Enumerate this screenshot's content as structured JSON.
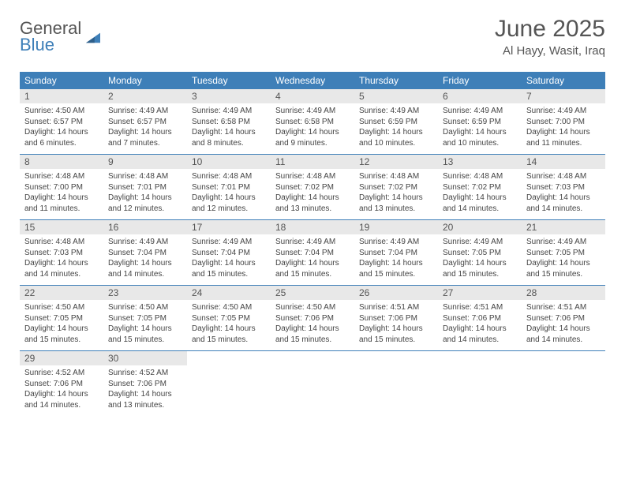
{
  "logo": {
    "line1": "General",
    "line2": "Blue"
  },
  "title": "June 2025",
  "location": "Al Hayy, Wasit, Iraq",
  "weekdays": [
    "Sunday",
    "Monday",
    "Tuesday",
    "Wednesday",
    "Thursday",
    "Friday",
    "Saturday"
  ],
  "colors": {
    "header_bar": "#3e7fb8",
    "daynum_bg": "#e8e8e8",
    "text": "#444444",
    "title": "#555555",
    "logo_accent": "#3e7fb8",
    "background": "#ffffff",
    "week_border": "#3e7fb8"
  },
  "fonts": {
    "title_size": 30,
    "location_size": 15,
    "weekday_size": 12,
    "daynum_size": 12,
    "body_size": 10
  },
  "days": [
    {
      "n": "1",
      "sunrise": "4:50 AM",
      "sunset": "6:57 PM",
      "daylight": "14 hours and 6 minutes."
    },
    {
      "n": "2",
      "sunrise": "4:49 AM",
      "sunset": "6:57 PM",
      "daylight": "14 hours and 7 minutes."
    },
    {
      "n": "3",
      "sunrise": "4:49 AM",
      "sunset": "6:58 PM",
      "daylight": "14 hours and 8 minutes."
    },
    {
      "n": "4",
      "sunrise": "4:49 AM",
      "sunset": "6:58 PM",
      "daylight": "14 hours and 9 minutes."
    },
    {
      "n": "5",
      "sunrise": "4:49 AM",
      "sunset": "6:59 PM",
      "daylight": "14 hours and 10 minutes."
    },
    {
      "n": "6",
      "sunrise": "4:49 AM",
      "sunset": "6:59 PM",
      "daylight": "14 hours and 10 minutes."
    },
    {
      "n": "7",
      "sunrise": "4:49 AM",
      "sunset": "7:00 PM",
      "daylight": "14 hours and 11 minutes."
    },
    {
      "n": "8",
      "sunrise": "4:48 AM",
      "sunset": "7:00 PM",
      "daylight": "14 hours and 11 minutes."
    },
    {
      "n": "9",
      "sunrise": "4:48 AM",
      "sunset": "7:01 PM",
      "daylight": "14 hours and 12 minutes."
    },
    {
      "n": "10",
      "sunrise": "4:48 AM",
      "sunset": "7:01 PM",
      "daylight": "14 hours and 12 minutes."
    },
    {
      "n": "11",
      "sunrise": "4:48 AM",
      "sunset": "7:02 PM",
      "daylight": "14 hours and 13 minutes."
    },
    {
      "n": "12",
      "sunrise": "4:48 AM",
      "sunset": "7:02 PM",
      "daylight": "14 hours and 13 minutes."
    },
    {
      "n": "13",
      "sunrise": "4:48 AM",
      "sunset": "7:02 PM",
      "daylight": "14 hours and 14 minutes."
    },
    {
      "n": "14",
      "sunrise": "4:48 AM",
      "sunset": "7:03 PM",
      "daylight": "14 hours and 14 minutes."
    },
    {
      "n": "15",
      "sunrise": "4:48 AM",
      "sunset": "7:03 PM",
      "daylight": "14 hours and 14 minutes."
    },
    {
      "n": "16",
      "sunrise": "4:49 AM",
      "sunset": "7:04 PM",
      "daylight": "14 hours and 14 minutes."
    },
    {
      "n": "17",
      "sunrise": "4:49 AM",
      "sunset": "7:04 PM",
      "daylight": "14 hours and 15 minutes."
    },
    {
      "n": "18",
      "sunrise": "4:49 AM",
      "sunset": "7:04 PM",
      "daylight": "14 hours and 15 minutes."
    },
    {
      "n": "19",
      "sunrise": "4:49 AM",
      "sunset": "7:04 PM",
      "daylight": "14 hours and 15 minutes."
    },
    {
      "n": "20",
      "sunrise": "4:49 AM",
      "sunset": "7:05 PM",
      "daylight": "14 hours and 15 minutes."
    },
    {
      "n": "21",
      "sunrise": "4:49 AM",
      "sunset": "7:05 PM",
      "daylight": "14 hours and 15 minutes."
    },
    {
      "n": "22",
      "sunrise": "4:50 AM",
      "sunset": "7:05 PM",
      "daylight": "14 hours and 15 minutes."
    },
    {
      "n": "23",
      "sunrise": "4:50 AM",
      "sunset": "7:05 PM",
      "daylight": "14 hours and 15 minutes."
    },
    {
      "n": "24",
      "sunrise": "4:50 AM",
      "sunset": "7:05 PM",
      "daylight": "14 hours and 15 minutes."
    },
    {
      "n": "25",
      "sunrise": "4:50 AM",
      "sunset": "7:06 PM",
      "daylight": "14 hours and 15 minutes."
    },
    {
      "n": "26",
      "sunrise": "4:51 AM",
      "sunset": "7:06 PM",
      "daylight": "14 hours and 15 minutes."
    },
    {
      "n": "27",
      "sunrise": "4:51 AM",
      "sunset": "7:06 PM",
      "daylight": "14 hours and 14 minutes."
    },
    {
      "n": "28",
      "sunrise": "4:51 AM",
      "sunset": "7:06 PM",
      "daylight": "14 hours and 14 minutes."
    },
    {
      "n": "29",
      "sunrise": "4:52 AM",
      "sunset": "7:06 PM",
      "daylight": "14 hours and 14 minutes."
    },
    {
      "n": "30",
      "sunrise": "4:52 AM",
      "sunset": "7:06 PM",
      "daylight": "14 hours and 13 minutes."
    }
  ],
  "labels": {
    "sunrise": "Sunrise: ",
    "sunset": "Sunset: ",
    "daylight": "Daylight: "
  }
}
